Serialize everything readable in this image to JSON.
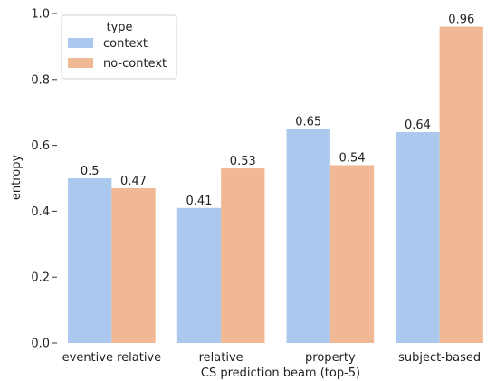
{
  "chart_data": {
    "type": "bar",
    "xlabel": "CS prediction beam (top-5)",
    "ylabel": "entropy",
    "ylim": [
      0,
      1.0
    ],
    "yticks": [
      0.0,
      0.2,
      0.4,
      0.6,
      0.8,
      1.0
    ],
    "ytick_labels": [
      "0.0",
      "0.2",
      "0.4",
      "0.6",
      "0.8",
      "1.0"
    ],
    "categories": [
      "eventive relative",
      "relative",
      "property",
      "subject-based"
    ],
    "series": [
      {
        "name": "context",
        "color": "#abc9ee",
        "values": [
          0.5,
          0.41,
          0.65,
          0.64
        ],
        "labels": [
          "0.5",
          "0.41",
          "0.65",
          "0.64"
        ]
      },
      {
        "name": "no-context",
        "color": "#f0b894",
        "values": [
          0.47,
          0.53,
          0.54,
          0.96
        ],
        "labels": [
          "0.47",
          "0.53",
          "0.54",
          "0.96"
        ]
      }
    ],
    "legend": {
      "title": "type",
      "position": "top-left"
    },
    "grid": false
  }
}
